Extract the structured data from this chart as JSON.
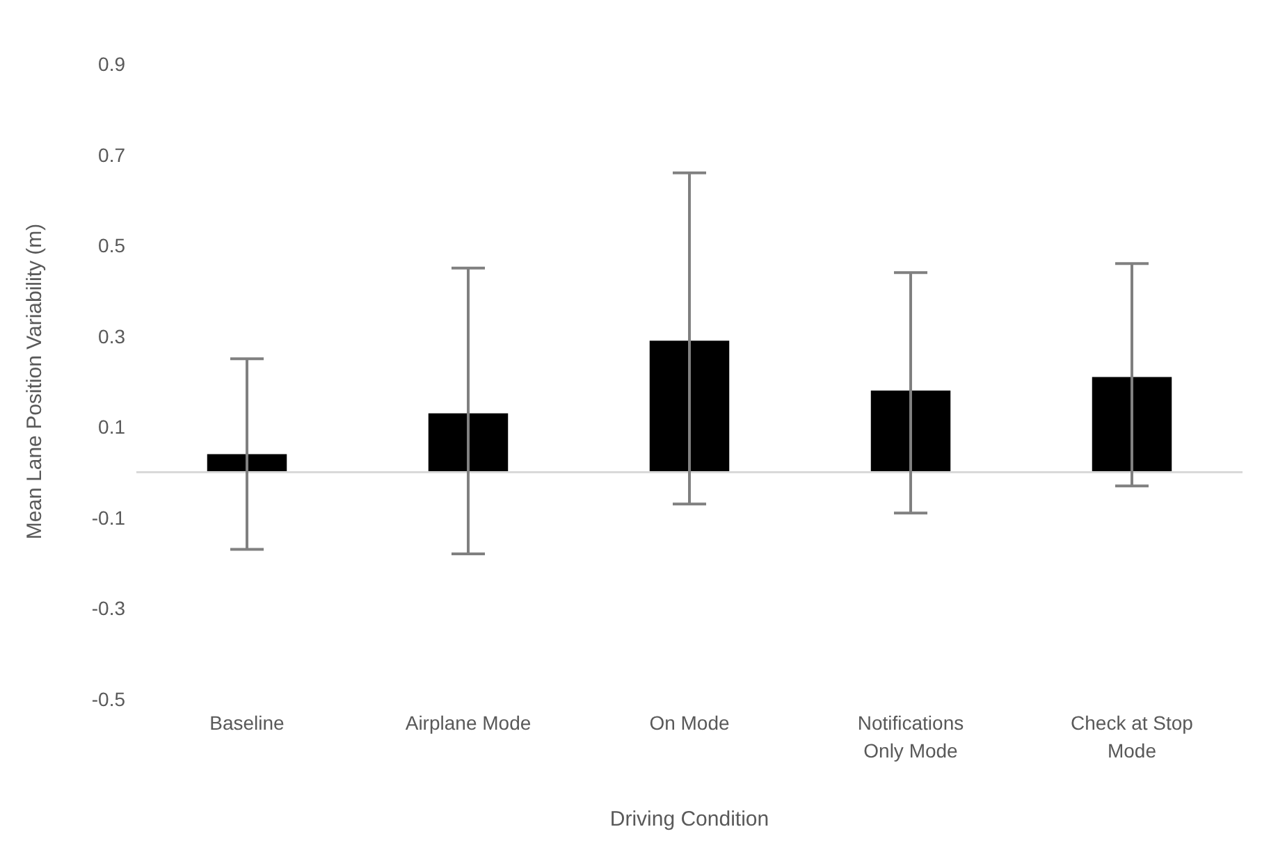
{
  "chart_data": {
    "type": "bar",
    "xlabel": "Driving Condition",
    "ylabel": "Mean Lane Position Variability  (m)",
    "categories": [
      "Baseline",
      "Airplane Mode",
      "On Mode",
      "Notifications Only Mode",
      "Check at Stop Mode"
    ],
    "values": [
      0.04,
      0.13,
      0.29,
      0.18,
      0.21
    ],
    "errors": [
      [
        -0.17,
        0.25
      ],
      [
        -0.18,
        0.45
      ],
      [
        -0.07,
        0.66
      ],
      [
        -0.09,
        0.44
      ],
      [
        -0.03,
        0.46
      ]
    ],
    "color": "#000000",
    "ylim": [
      -0.5,
      0.9
    ],
    "yticks": [
      -0.5,
      -0.3,
      -0.1,
      0.1,
      0.3,
      0.5,
      0.7,
      0.9
    ],
    "grid": false,
    "legend": false
  }
}
